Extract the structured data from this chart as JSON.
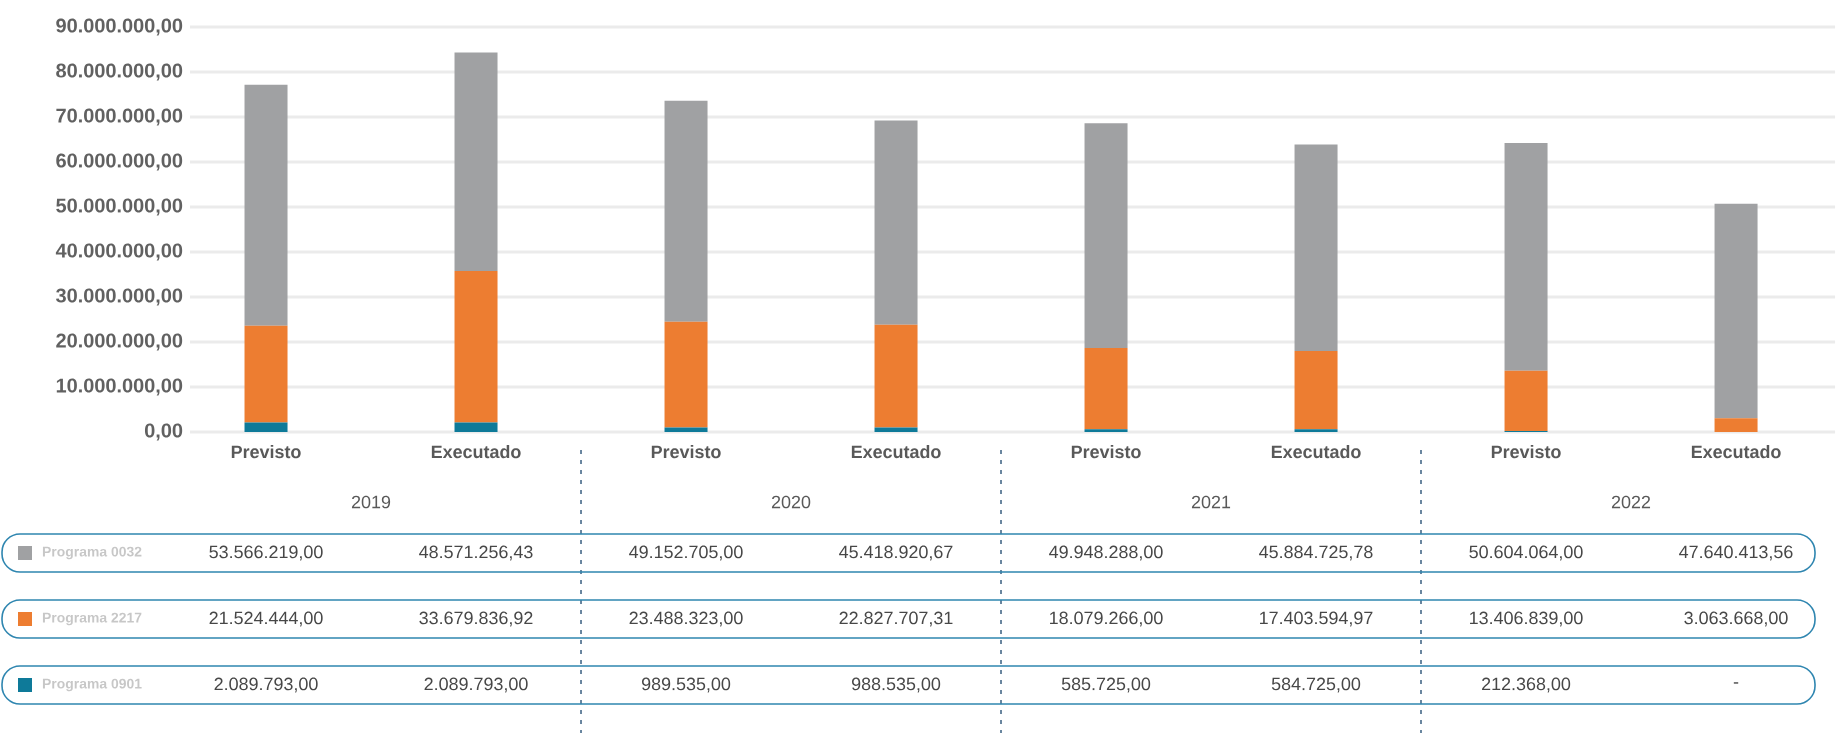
{
  "chart_data": {
    "type": "bar",
    "stacked": true,
    "grid": "y",
    "legend": "bottom left",
    "categories": [
      "Previsto",
      "Executado",
      "Previsto",
      "Executado",
      "Previsto",
      "Executado",
      "Previsto",
      "Executado"
    ],
    "annotations": [
      "2019",
      "2020",
      "2021",
      "2022"
    ],
    "ylim": [
      0,
      90000000
    ],
    "yticks": [
      {
        "value": 0,
        "label": "0,00"
      },
      {
        "value": 10000000,
        "label": "10.000.000,00"
      },
      {
        "value": 20000000,
        "label": "20.000.000,00"
      },
      {
        "value": 30000000,
        "label": "30.000.000,00"
      },
      {
        "value": 40000000,
        "label": "40.000.000,00"
      },
      {
        "value": 50000000,
        "label": "50.000.000,00"
      },
      {
        "value": 60000000,
        "label": "60.000.000,00"
      },
      {
        "value": 70000000,
        "label": "70.000.000,00"
      },
      {
        "value": 80000000,
        "label": "80.000.000,00"
      },
      {
        "value": 90000000,
        "label": "90.000.000,00"
      }
    ],
    "series": [
      {
        "name": "Programa 0901",
        "color": "#0e7a99",
        "values": [
          2089793.0,
          2089793.0,
          989535.0,
          988535.0,
          585725.0,
          584725.0,
          212368.0,
          null
        ],
        "value_labels": [
          "2.089.793,00",
          "2.089.793,00",
          "989.535,00",
          "988.535,00",
          "585.725,00",
          "584.725,00",
          "212.368,00",
          "-"
        ]
      },
      {
        "name": "Programa 2217",
        "color": "#ed7d31",
        "values": [
          21524444.0,
          33679836.92,
          23488323.0,
          22827707.31,
          18079266.0,
          17403594.97,
          13406839.0,
          3063668.0
        ],
        "value_labels": [
          "21.524.444,00",
          "33.679.836,92",
          "23.488.323,00",
          "22.827.707,31",
          "18.079.266,00",
          "17.403.594,97",
          "13.406.839,00",
          "3.063.668,00"
        ]
      },
      {
        "name": "Programa 0032",
        "color": "#a0a1a3",
        "values": [
          53566219.0,
          48571256.43,
          49152705.0,
          45418920.67,
          49948288.0,
          45884725.78,
          50604064.0,
          47640413.56
        ],
        "value_labels": [
          "53.566.219,00",
          "48.571.256,43",
          "49.152.705,00",
          "45.418.920,67",
          "49.948.288,00",
          "45.884.725,78",
          "50.604.064,00",
          "47.640.413,56"
        ]
      }
    ]
  }
}
